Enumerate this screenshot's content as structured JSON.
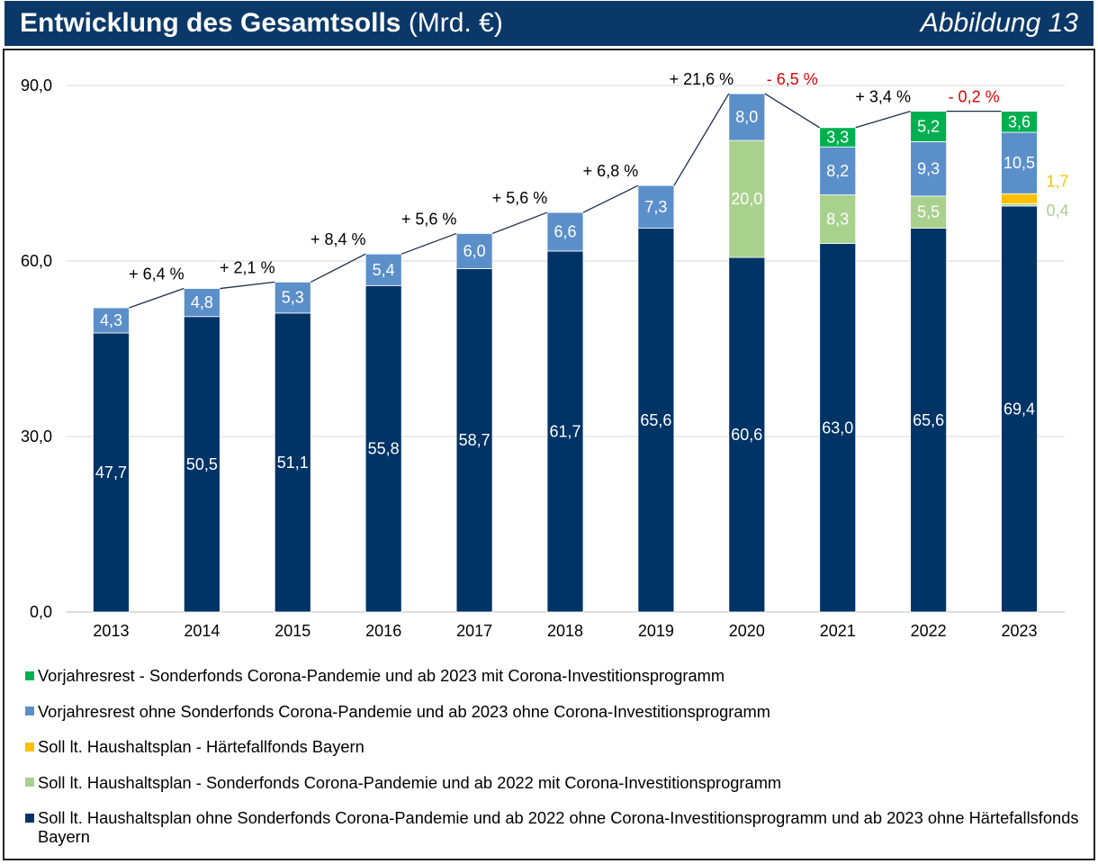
{
  "chart_data": {
    "type": "bar",
    "stacked": true,
    "title": "Entwicklung des Gesamtsolls",
    "unit": "(Mrd. €)",
    "figure_label": "Abbildung 13",
    "categories": [
      "2013",
      "2014",
      "2015",
      "2016",
      "2017",
      "2018",
      "2019",
      "2020",
      "2021",
      "2022",
      "2023"
    ],
    "ylim": [
      0,
      90
    ],
    "y_ticks": [
      0,
      30,
      60,
      90
    ],
    "grid": true,
    "legend_position": "bottom",
    "series": [
      {
        "name": "Soll lt. Haushaltsplan ohne Sonderfonds Corona-Pandemie und ab 2022 ohne Corona-Investitionsprogramm und ab 2023 ohne Härtefallsfonds Bayern",
        "color": "#003366",
        "values": [
          47.7,
          50.5,
          51.1,
          55.8,
          58.7,
          61.7,
          65.6,
          60.6,
          63.0,
          65.6,
          69.4
        ]
      },
      {
        "name": "Soll lt. Haushaltsplan - Sonderfonds Corona-Pandemie und ab 2022 mit Corona-Investitionsprogramm",
        "color": "#a9d18e",
        "values": [
          null,
          null,
          null,
          null,
          null,
          null,
          null,
          20.0,
          8.3,
          5.5,
          0.4
        ]
      },
      {
        "name": "Soll lt. Haushaltsplan - Härtefallfonds Bayern",
        "color": "#ffc000",
        "values": [
          null,
          null,
          null,
          null,
          null,
          null,
          null,
          null,
          null,
          null,
          1.7
        ]
      },
      {
        "name": "Vorjahresrest ohne Sonderfonds Corona-Pandemie und ab 2023 ohne Corona-Investitionsprogramm",
        "color": "#5b8fc9",
        "values": [
          4.3,
          4.8,
          5.3,
          5.4,
          6.0,
          6.6,
          7.3,
          8.0,
          8.2,
          9.3,
          10.5
        ]
      },
      {
        "name": "Vorjahresrest - Sonderfonds Corona-Pandemie und ab 2023 mit Corona-Investitionsprogramm",
        "color": "#00b050",
        "values": [
          null,
          null,
          null,
          null,
          null,
          null,
          null,
          null,
          3.3,
          5.2,
          3.6
        ]
      }
    ],
    "change_labels": [
      "+ 6,4 %",
      "+ 2,1 %",
      "+ 8,4 %",
      "+ 5,6 %",
      "+ 5,6 %",
      "+ 6,8 %",
      "+ 21,6 %",
      "- 6,5 %",
      "+ 3,4 %",
      "- 0,2 %"
    ],
    "colors": {
      "header_background": "#0a3868",
      "connector_line": "#1c2d4a",
      "gridline": "#d9d9d9",
      "axis": "#bfbfbf",
      "positive_change": "#000000",
      "negative_change": "#e00000",
      "segment_label": "#ffffff"
    }
  }
}
